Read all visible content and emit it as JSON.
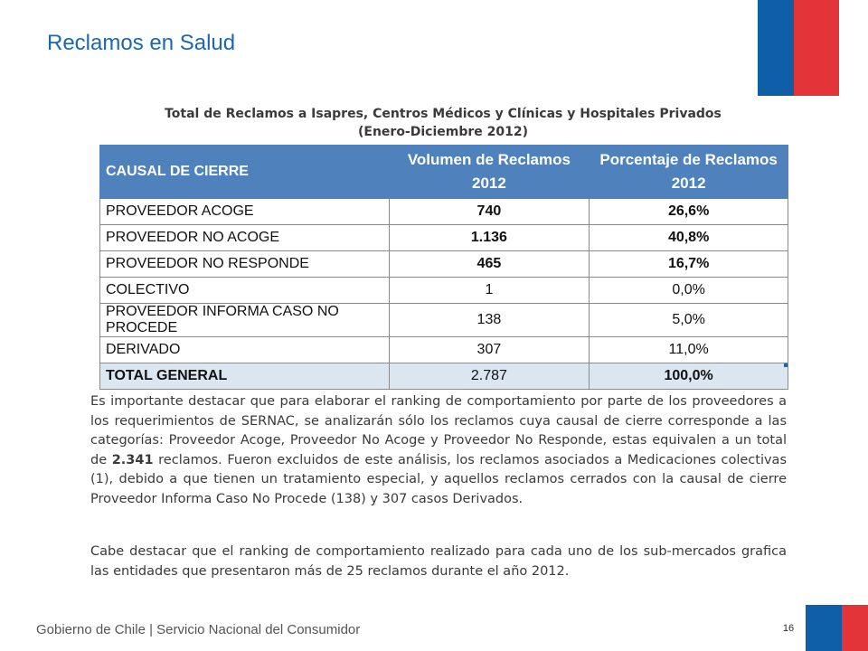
{
  "header": {
    "title": "Reclamos en Salud"
  },
  "table": {
    "title_line1": "Total de Reclamos a Isapres, Centros Médicos y Clínicas y Hospitales Privados",
    "title_line2": "(Enero-Diciembre 2012)",
    "headers": {
      "cause": "CAUSAL DE CIERRE",
      "volume_line1": "Volumen de Reclamos",
      "volume_line2": "2012",
      "percent_line1": "Porcentaje de Reclamos",
      "percent_line2": "2012"
    },
    "rows": [
      {
        "cause": "PROVEEDOR ACOGE",
        "volume": "740",
        "percent": "26,6%"
      },
      {
        "cause": "PROVEEDOR NO ACOGE",
        "volume": "1.136",
        "percent": "40,8%"
      },
      {
        "cause": "PROVEEDOR NO RESPONDE",
        "volume": "465",
        "percent": "16,7%"
      },
      {
        "cause": "COLECTIVO",
        "volume": "1",
        "percent": "0,0%"
      },
      {
        "cause": "PROVEEDOR INFORMA CASO NO PROCEDE",
        "volume": "138",
        "percent": "5,0%"
      },
      {
        "cause": "DERIVADO",
        "volume": "307",
        "percent": "11,0%"
      }
    ],
    "total": {
      "cause": "TOTAL GENERAL",
      "volume": "2.787",
      "percent": "100,0%"
    }
  },
  "body": {
    "p1_before": "Es importante destacar que para elaborar el ranking de comportamiento por parte de los proveedores a los requerimientos de SERNAC, se analizarán sólo los reclamos cuya causal de cierre corresponde a las categorías: Proveedor Acoge, Proveedor No Acoge y Proveedor No Responde, estas equivalen a un total de ",
    "p1_bold": "2.341",
    "p1_after": " reclamos. Fueron excluidos de este análisis, los reclamos asociados a Medicaciones colectivas (1), debido a que tienen un tratamiento especial, y aquellos reclamos cerrados con la causal de cierre Proveedor Informa Caso No Procede (138) y 307 casos Derivados.",
    "p2": "Cabe destacar que el ranking de comportamiento realizado para cada uno de los sub-mercados grafica las entidades que presentaron más de 25 reclamos durante el año 2012."
  },
  "footer": {
    "org": "Gobierno de Chile | Servicio Nacional del Consumidor",
    "page_number": "16"
  },
  "colors": {
    "title_blue": "#1b67b0",
    "flag_blue": "#0f5fa8",
    "flag_red": "#e3343a",
    "header_fill": "#4f81bd",
    "total_fill": "#dce6f1"
  }
}
